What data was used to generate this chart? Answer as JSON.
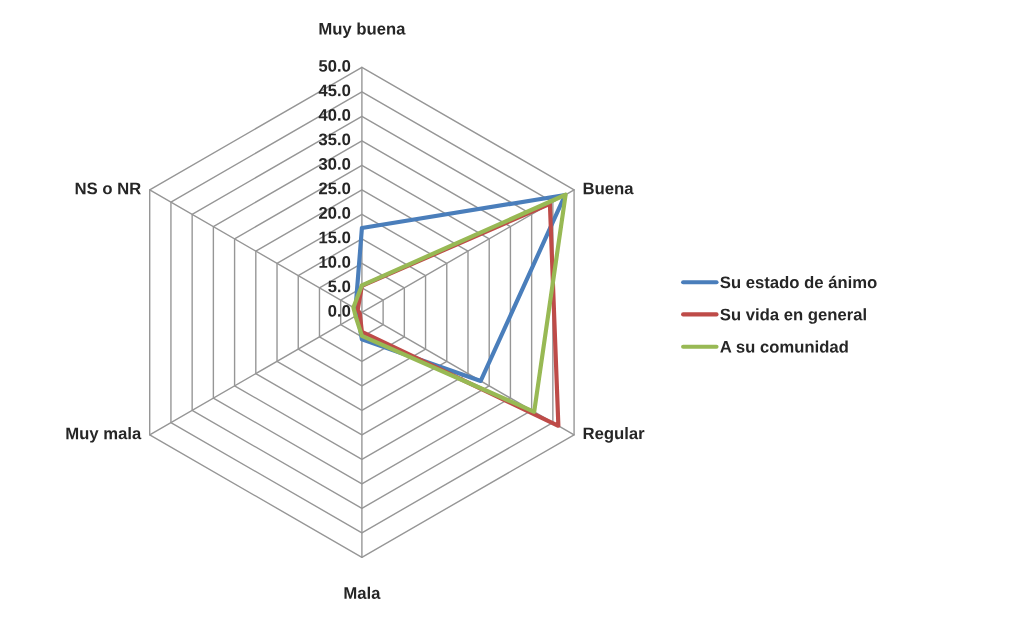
{
  "chart_data": {
    "type": "radar",
    "categories": [
      "Muy buena",
      "Buena",
      "Regular",
      "Mala",
      "Muy mala",
      "NS o NR"
    ],
    "series": [
      {
        "name": "Su estado de ánimo",
        "color": "#4a7ebb",
        "values": [
          17.2,
          47.9,
          28.0,
          5.5,
          1.0,
          1.5
        ]
      },
      {
        "name": "Su vida en general",
        "color": "#be4b48",
        "values": [
          5.4,
          44.3,
          46.3,
          4.0,
          0.5,
          1.0
        ]
      },
      {
        "name": "A su comunidad",
        "color": "#98b954",
        "values": [
          5.5,
          48.0,
          40.6,
          4.8,
          1.5,
          2.0
        ]
      }
    ],
    "ylim": [
      0,
      50
    ],
    "yticks": [
      {
        "value": 0,
        "label": "0.0"
      },
      {
        "value": 5,
        "label": "5.0"
      },
      {
        "value": 10,
        "label": "10.0"
      },
      {
        "value": 15,
        "label": "15.0"
      },
      {
        "value": 20,
        "label": "20.0"
      },
      {
        "value": 25,
        "label": "25.0"
      },
      {
        "value": 30,
        "label": "30.0"
      },
      {
        "value": 35,
        "label": "35.0"
      },
      {
        "value": 40,
        "label": "40.0"
      },
      {
        "value": 45,
        "label": "45.0"
      },
      {
        "value": 50,
        "label": "50.0"
      }
    ],
    "grid": true,
    "legend": "right"
  }
}
